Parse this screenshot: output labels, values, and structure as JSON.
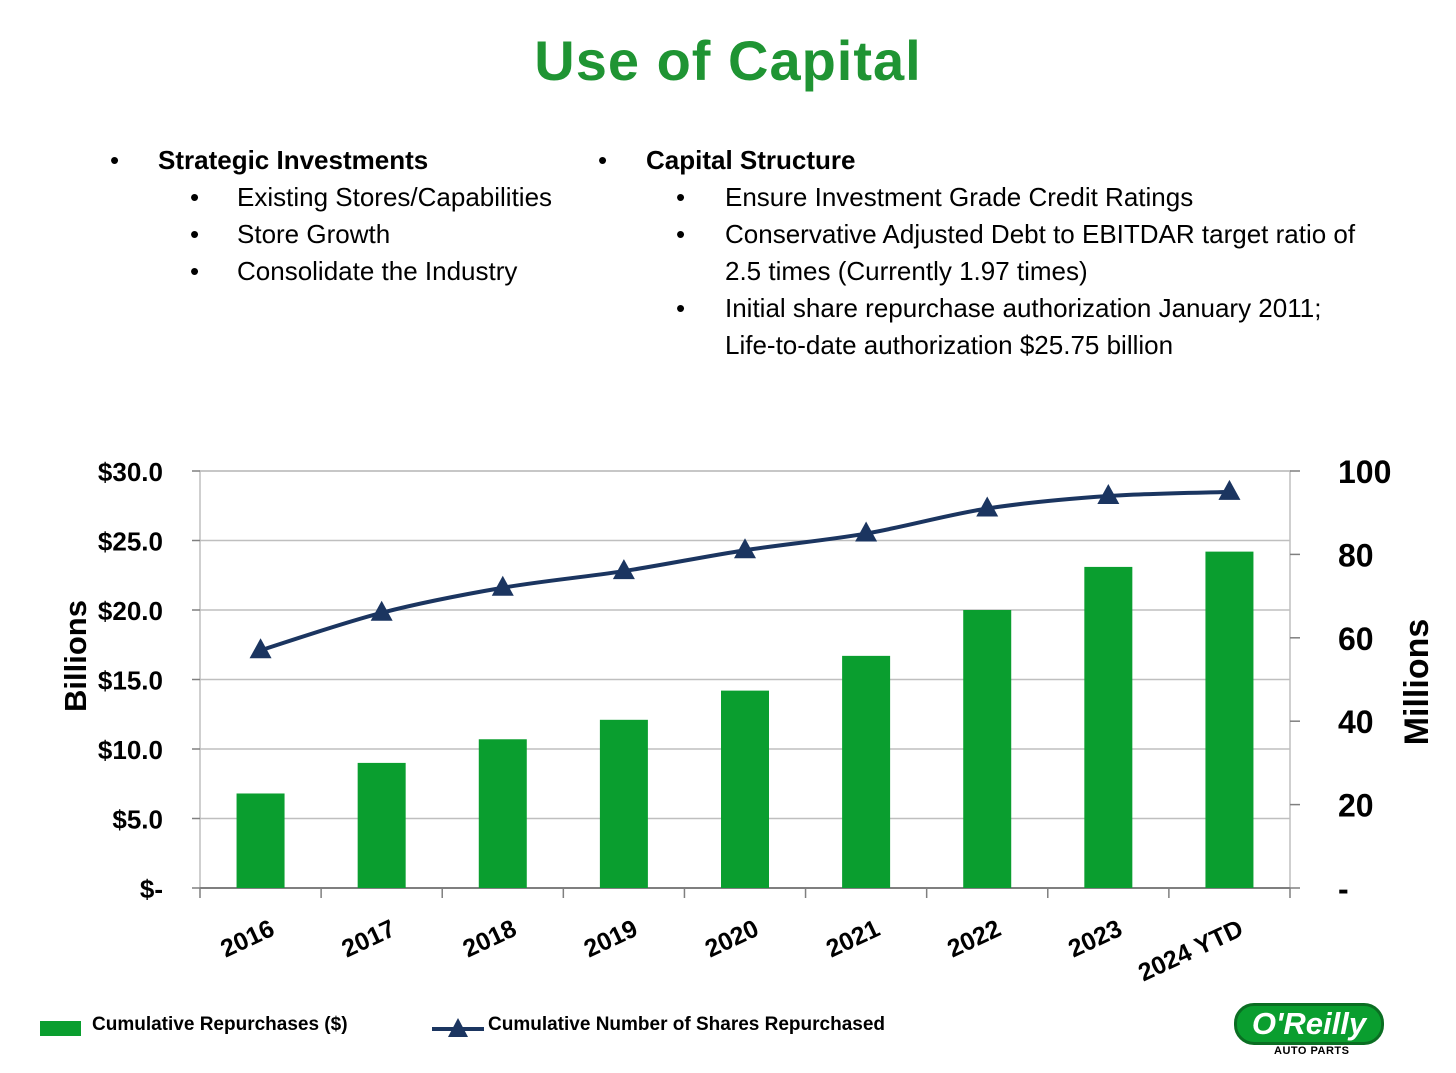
{
  "title": "Use of Capital",
  "left_bullets": {
    "heading": "Strategic Investments",
    "items": [
      "Existing Stores/Capabilities",
      "Store Growth",
      "Consolidate the Industry"
    ]
  },
  "right_bullets": {
    "heading": "Capital Structure",
    "items": [
      [
        "Ensure Investment Grade Credit Ratings"
      ],
      [
        "Conservative Adjusted Debt to EBITDAR target ratio of",
        "2.5 times (Currently 1.97 times)"
      ],
      [
        "Initial share repurchase authorization January 2011;",
        "Life-to-date authorization $25.75 billion"
      ]
    ]
  },
  "bullet_char": "•",
  "colors": {
    "title": "#1f9433",
    "bar": "#0a9e2f",
    "line": "#1b3560",
    "grid": "#bfbfbf"
  },
  "chart_data": {
    "type": "bar",
    "categories": [
      "2016",
      "2017",
      "2018",
      "2019",
      "2020",
      "2021",
      "2022",
      "2023",
      "2024 YTD"
    ],
    "series": [
      {
        "name": "Cumulative Repurchases ($)",
        "type": "bar",
        "axis": "left",
        "values": [
          6.8,
          9.0,
          10.7,
          12.1,
          14.2,
          16.7,
          20.0,
          23.1,
          24.2
        ]
      },
      {
        "name": "Cumulative Number of Shares Repurchased",
        "type": "line",
        "marker": "triangle",
        "axis": "right",
        "values": [
          57,
          66,
          72,
          76,
          81,
          85,
          91,
          94,
          95
        ]
      }
    ],
    "ylabel": "Billions",
    "y2label": "Millions",
    "ylim": [
      0,
      30
    ],
    "y2lim": [
      0,
      100
    ],
    "yticks": [
      0,
      5,
      10,
      15,
      20,
      25,
      30
    ],
    "ytick_labels": [
      "$-",
      "$5.0",
      "$10.0",
      "$15.0",
      "$20.0",
      "$25.0",
      "$30.0"
    ],
    "y2ticks": [
      0,
      20,
      40,
      60,
      80,
      100
    ],
    "y2tick_labels": [
      "-",
      "20",
      "40",
      "60",
      "80",
      "100"
    ],
    "grid": true,
    "legend": "bottom"
  },
  "logo": {
    "main": "O'Reilly",
    "sub": "AUTO PARTS"
  }
}
